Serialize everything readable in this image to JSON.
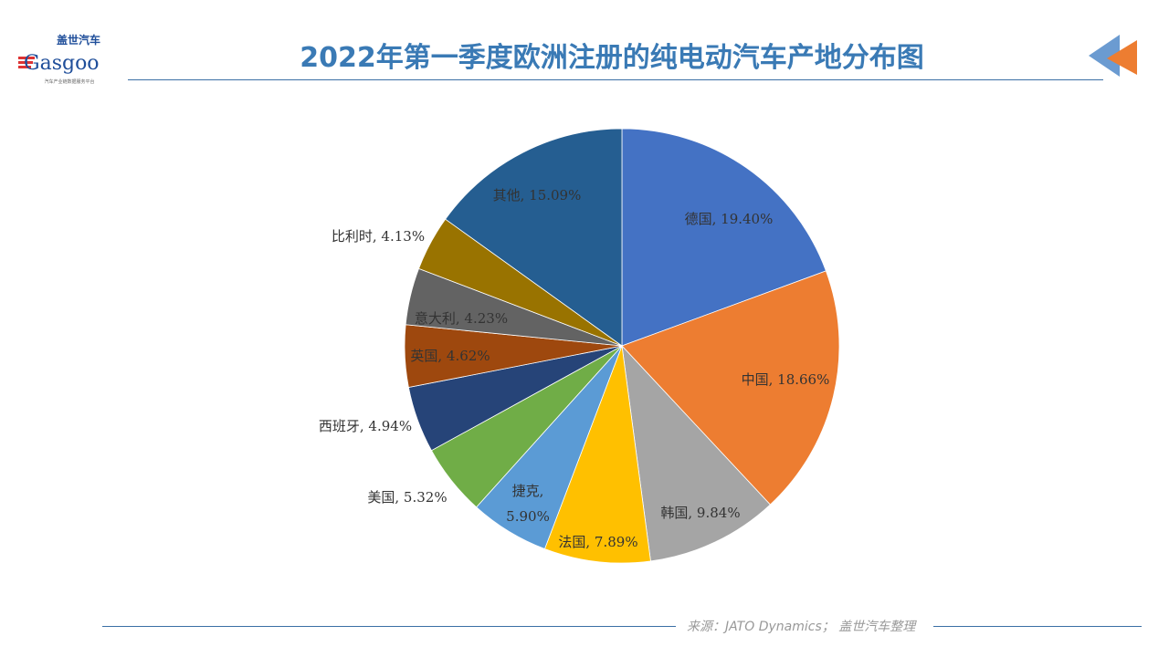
{
  "logo": {
    "cn": "盖世汽车",
    "en": "Gasgoo",
    "tagline": "汽车产业链数据服务平台"
  },
  "title": "2022年第一季度欧洲注册的纯电动汽车产地分布图",
  "source": "来源：JATO Dynamics； 盖世汽车整理",
  "chart_data": {
    "type": "pie",
    "title": "2022年第一季度欧洲注册的纯电动汽车产地分布图",
    "unit": "%",
    "start": "top, clockwise",
    "categories": [
      "德国",
      "中国",
      "韩国",
      "法国",
      "捷克",
      "美国",
      "西班牙",
      "英国",
      "意大利",
      "比利时",
      "其他"
    ],
    "values": [
      19.4,
      18.66,
      9.84,
      7.89,
      5.9,
      5.32,
      4.94,
      4.62,
      4.23,
      4.13,
      15.09
    ],
    "labels": [
      "德国, 19.40%",
      "中国, 18.66%",
      "韩国, 9.84%",
      "法国, 7.89%",
      "捷克, 5.90%",
      "美国, 5.32%",
      "西班牙, 4.94%",
      "英国, 4.62%",
      "意大利, 4.23%",
      "比利时, 4.13%",
      "其他, 15.09%"
    ],
    "colors": [
      "#4472C4",
      "#ED7D31",
      "#A5A5A5",
      "#FFC000",
      "#5B9BD5",
      "#70AD47",
      "#264478",
      "#9E480E",
      "#636363",
      "#997300",
      "#255E91"
    ]
  }
}
